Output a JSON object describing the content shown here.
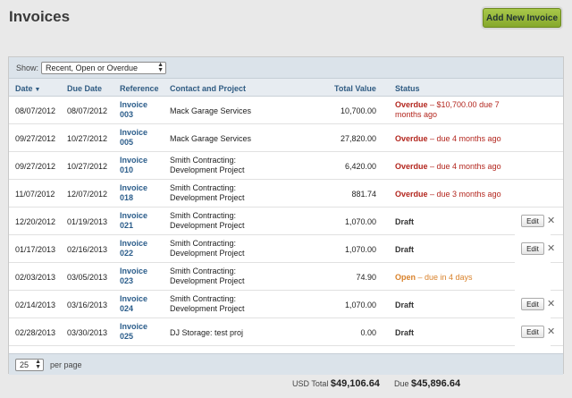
{
  "header": {
    "title": "Invoices",
    "add_button": "Add New Invoice"
  },
  "filter": {
    "label": "Show:",
    "selected": "Recent, Open or Overdue"
  },
  "columns": {
    "date": "Date",
    "due_date": "Due Date",
    "reference": "Reference",
    "contact": "Contact and Project",
    "total": "Total Value",
    "status": "Status"
  },
  "rows": [
    {
      "date": "08/07/2012",
      "due": "08/07/2012",
      "ref1": "Invoice",
      "ref2": "003",
      "contact1": "Mack Garage Services",
      "contact2": "",
      "total": "10,700.00",
      "status_type": "overdue",
      "status_bold": "Overdue",
      "status_rest": " – $10,700.00 due 7",
      "status_line2": "months ago",
      "edit": ""
    },
    {
      "date": "09/27/2012",
      "due": "10/27/2012",
      "ref1": "Invoice",
      "ref2": "005",
      "contact1": "Mack Garage Services",
      "contact2": "",
      "total": "27,820.00",
      "status_type": "overdue",
      "status_bold": "Overdue",
      "status_rest": " – due 4 months ago",
      "status_line2": "",
      "edit": ""
    },
    {
      "date": "09/27/2012",
      "due": "10/27/2012",
      "ref1": "Invoice",
      "ref2": "010",
      "contact1": "Smith Contracting:",
      "contact2": "Development Project",
      "total": "6,420.00",
      "status_type": "overdue",
      "status_bold": "Overdue",
      "status_rest": " – due 4 months ago",
      "status_line2": "",
      "edit": ""
    },
    {
      "date": "11/07/2012",
      "due": "12/07/2012",
      "ref1": "Invoice",
      "ref2": "018",
      "contact1": "Smith Contracting:",
      "contact2": "Development Project",
      "total": "881.74",
      "status_type": "overdue",
      "status_bold": "Overdue",
      "status_rest": " – due 3 months ago",
      "status_line2": "",
      "edit": ""
    },
    {
      "date": "12/20/2012",
      "due": "01/19/2013",
      "ref1": "Invoice",
      "ref2": "021",
      "contact1": "Smith Contracting:",
      "contact2": "Development Project",
      "total": "1,070.00",
      "status_type": "draft",
      "status_bold": "Draft",
      "status_rest": "",
      "status_line2": "",
      "edit": "Edit"
    },
    {
      "date": "01/17/2013",
      "due": "02/16/2013",
      "ref1": "Invoice",
      "ref2": "022",
      "contact1": "Smith Contracting:",
      "contact2": "Development Project",
      "total": "1,070.00",
      "status_type": "draft",
      "status_bold": "Draft",
      "status_rest": "",
      "status_line2": "",
      "edit": "Edit"
    },
    {
      "date": "02/03/2013",
      "due": "03/05/2013",
      "ref1": "Invoice",
      "ref2": "023",
      "contact1": "Smith Contracting:",
      "contact2": "Development Project",
      "total": "74.90",
      "status_type": "open",
      "status_bold": "Open",
      "status_rest": " – due in 4 days",
      "status_line2": "",
      "edit": ""
    },
    {
      "date": "02/14/2013",
      "due": "03/16/2013",
      "ref1": "Invoice",
      "ref2": "024",
      "contact1": "Smith Contracting:",
      "contact2": "Development Project",
      "total": "1,070.00",
      "status_type": "draft",
      "status_bold": "Draft",
      "status_rest": "",
      "status_line2": "",
      "edit": "Edit"
    },
    {
      "date": "02/28/2013",
      "due": "03/30/2013",
      "ref1": "Invoice",
      "ref2": "025",
      "contact1": "DJ Storage: test proj",
      "contact2": "",
      "total": "0.00",
      "status_type": "draft",
      "status_bold": "Draft",
      "status_rest": "",
      "status_line2": "",
      "edit": "Edit"
    }
  ],
  "footer": {
    "per_page_value": "25",
    "per_page_label": "per page"
  },
  "totals": {
    "usd_label": "USD Total",
    "usd_value": "$49,106.64",
    "due_label": "Due",
    "due_value": "$45,896.64"
  },
  "colors": {
    "overdue": "#b3261e",
    "open": "#d9822b",
    "link": "#2a5c8a",
    "accent_button": "#96b83a"
  },
  "icons": {
    "sort": "sort-desc-icon",
    "delete": "close-icon"
  }
}
